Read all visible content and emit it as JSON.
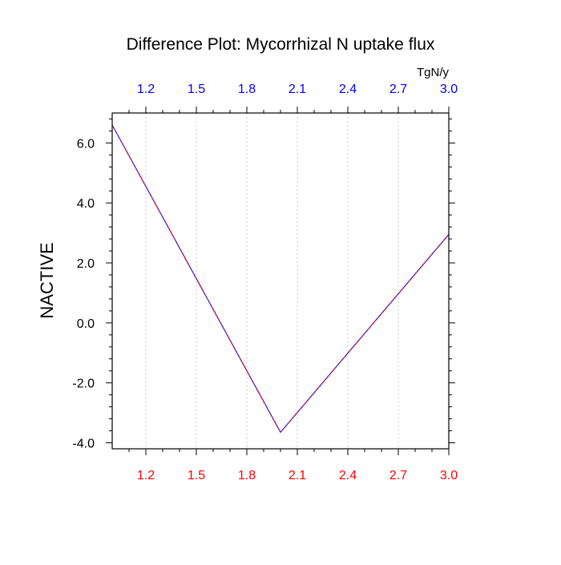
{
  "chart_data": {
    "type": "line",
    "title": "Difference Plot: Mycorrhizal N uptake flux",
    "ylabel": "NACTIVE",
    "units": "TgN/y",
    "xlim": [
      1.0,
      3.0
    ],
    "ylim": [
      -4.2,
      7.0
    ],
    "x_ticks": [
      1.2,
      1.5,
      1.8,
      2.1,
      2.4,
      2.7,
      3.0
    ],
    "x_tick_labels": [
      "1.2",
      "1.5",
      "1.8",
      "2.1",
      "2.4",
      "2.7",
      "3.0"
    ],
    "y_ticks": [
      -4,
      -2,
      0,
      2,
      4,
      6
    ],
    "y_tick_labels": [
      "-4.0",
      "-2.0",
      "0.0",
      "2.0",
      "4.0",
      "6.0"
    ],
    "vertical_grid": true,
    "colors": {
      "bottom_ticklabels": "#ff0000",
      "top_ticklabels": "#0000ff",
      "line_primary": "#0000ff",
      "line_dash": "#ff0000",
      "grid": "#c8c8c8",
      "axis": "#000000"
    },
    "series": [
      {
        "x": [
          1.0,
          2.0,
          3.0
        ],
        "y": [
          6.6,
          -3.65,
          2.95
        ]
      }
    ]
  }
}
